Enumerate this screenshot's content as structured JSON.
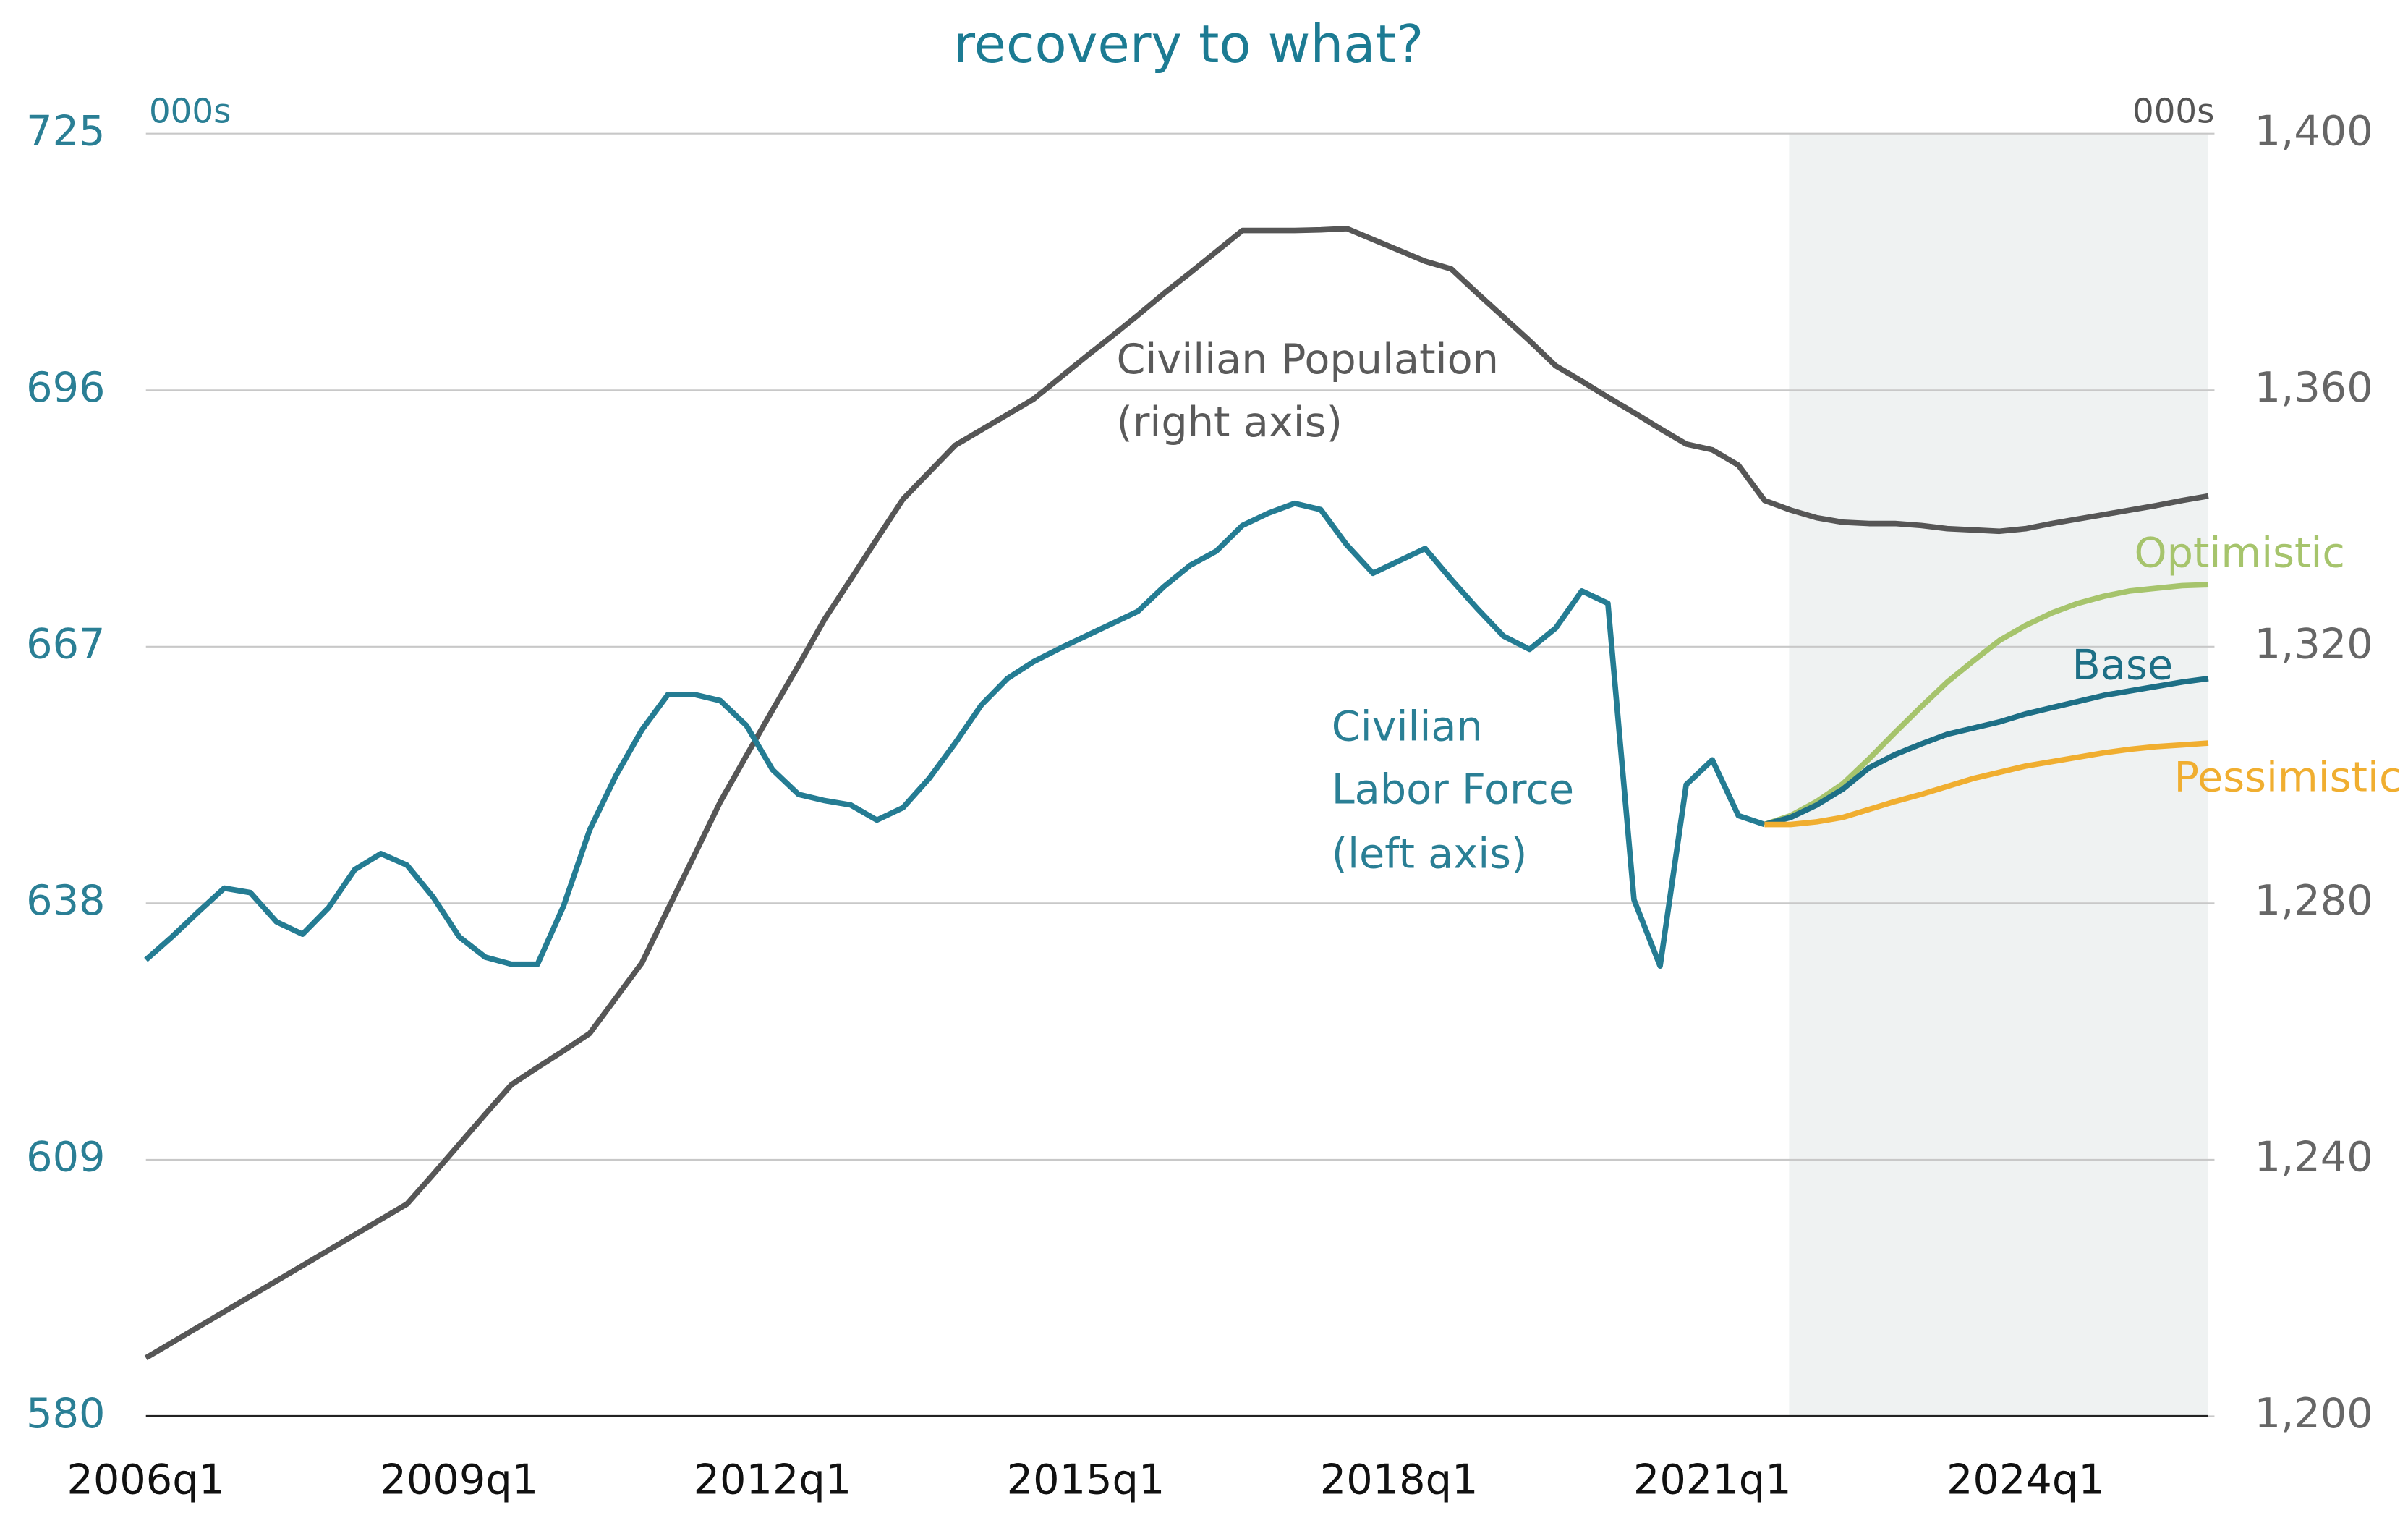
{
  "chart_data": {
    "type": "line",
    "title": "recovery to what?",
    "y_unit_label": "000s",
    "y2_unit_label": "000s",
    "categories": [
      "2006q1",
      null,
      null,
      null,
      null,
      null,
      null,
      null,
      null,
      null,
      null,
      null,
      "2009q1",
      null,
      null,
      null,
      null,
      null,
      null,
      null,
      null,
      null,
      null,
      null,
      "2012q1",
      null,
      null,
      null,
      null,
      null,
      null,
      null,
      null,
      null,
      null,
      null,
      "2015q1",
      null,
      null,
      null,
      null,
      null,
      null,
      null,
      null,
      null,
      null,
      null,
      "2018q1",
      null,
      null,
      null,
      null,
      null,
      null,
      null,
      null,
      null,
      null,
      null,
      "2021q1",
      null,
      null,
      null,
      null,
      null,
      null,
      null,
      null,
      null,
      null,
      null,
      "2024q1",
      null,
      null,
      null,
      null,
      null,
      null,
      null
    ],
    "ylim": [
      580,
      725
    ],
    "yticks": [
      580,
      609,
      638,
      667,
      696,
      725
    ],
    "y2lim": [
      1200,
      1400
    ],
    "y2ticks": [
      {
        "value": 1200,
        "label": "1,200"
      },
      {
        "value": 1240,
        "label": "1,240"
      },
      {
        "value": 1280,
        "label": "1,280"
      },
      {
        "value": 1320,
        "label": "1,320"
      },
      {
        "value": 1360,
        "label": "1,360"
      },
      {
        "value": 1400,
        "label": "1,400"
      }
    ],
    "grid": true,
    "series": [
      {
        "name": "Civilian Population",
        "note": "(right axis)",
        "axis": "y2",
        "color": "#565656",
        "values": [
          1209.1,
          1211.5,
          1213.9,
          1216.3,
          1218.7,
          1221.1,
          1223.5,
          1225.9,
          1228.3,
          1230.7,
          1233.1,
          1237.7,
          1242.4,
          1247.1,
          1251.7,
          1254.4,
          1257.0,
          1259.7,
          1265.2,
          1270.7,
          1279.1,
          1287.4,
          1295.8,
          1303.0,
          1310.1,
          1317.1,
          1324.3,
          1330.5,
          1336.8,
          1343.0,
          1347.2,
          1351.4,
          1353.8,
          1356.2,
          1358.6,
          1361.9,
          1365.2,
          1368.4,
          1371.7,
          1375.1,
          1378.3,
          1381.6,
          1384.9,
          1384.9,
          1384.9,
          1385.0,
          1385.2,
          1383.5,
          1381.8,
          1380.1,
          1378.9,
          1375.1,
          1371.4,
          1367.7,
          1363.8,
          1361.4,
          1358.9,
          1356.5,
          1354.0,
          1351.6,
          1350.7,
          1348.3,
          1342.8,
          1341.3,
          1340.1,
          1339.4,
          1339.2,
          1339.2,
          1338.9,
          1338.4,
          1338.2,
          1338.0,
          1338.4,
          1339.2,
          1339.9,
          1340.6,
          1341.3,
          1342.0,
          1342.8,
          1343.5
        ]
      },
      {
        "name": "Civilian Labor Force",
        "note": "(left axis)",
        "color": "#247c93",
        "values": [
          631.6,
          634.2,
          637.0,
          639.7,
          639.2,
          635.9,
          634.5,
          637.5,
          641.8,
          643.6,
          642.3,
          638.7,
          634.2,
          631.9,
          631.1,
          631.1,
          637.7,
          646.3,
          652.4,
          657.6,
          661.6,
          661.6,
          660.9,
          658.1,
          653.1,
          650.3,
          649.6,
          649.1,
          647.4,
          648.8,
          652.1,
          656.1,
          660.4,
          663.4,
          665.3,
          666.8,
          668.2,
          669.6,
          671.0,
          673.8,
          676.2,
          677.8,
          680.7,
          682.1,
          683.2,
          682.5,
          678.5,
          675.3,
          676.7,
          678.1,
          674.6,
          671.3,
          668.2,
          666.7,
          669.1,
          673.3,
          671.9,
          638.4,
          630.9,
          651.4,
          654.2,
          647.9,
          646.9,
          null,
          null,
          null,
          null,
          null,
          null,
          null,
          null,
          null,
          null,
          null,
          null,
          null,
          null,
          null,
          null,
          null
        ]
      },
      {
        "name": "Optimistic",
        "color": "#a6c46c",
        "values": [
          null,
          null,
          null,
          null,
          null,
          null,
          null,
          null,
          null,
          null,
          null,
          null,
          null,
          null,
          null,
          null,
          null,
          null,
          null,
          null,
          null,
          null,
          null,
          null,
          null,
          null,
          null,
          null,
          null,
          null,
          null,
          null,
          null,
          null,
          null,
          null,
          null,
          null,
          null,
          null,
          null,
          null,
          null,
          null,
          null,
          null,
          null,
          null,
          null,
          null,
          null,
          null,
          null,
          null,
          null,
          null,
          null,
          null,
          null,
          null,
          null,
          null,
          646.9,
          647.9,
          649.5,
          651.5,
          654.3,
          657.3,
          660.2,
          663.0,
          665.4,
          667.7,
          669.4,
          670.8,
          671.9,
          672.7,
          673.3,
          673.6,
          673.9,
          674.0
        ]
      },
      {
        "name": "Base",
        "color": "#1d6f86",
        "values": [
          null,
          null,
          null,
          null,
          null,
          null,
          null,
          null,
          null,
          null,
          null,
          null,
          null,
          null,
          null,
          null,
          null,
          null,
          null,
          null,
          null,
          null,
          null,
          null,
          null,
          null,
          null,
          null,
          null,
          null,
          null,
          null,
          null,
          null,
          null,
          null,
          null,
          null,
          null,
          null,
          null,
          null,
          null,
          null,
          null,
          null,
          null,
          null,
          null,
          null,
          null,
          null,
          null,
          null,
          null,
          null,
          null,
          null,
          null,
          null,
          null,
          null,
          646.9,
          647.7,
          649.1,
          650.9,
          653.3,
          654.8,
          656.0,
          657.1,
          657.8,
          658.5,
          659.4,
          660.1,
          660.8,
          661.5,
          662.0,
          662.5,
          663.0,
          663.4
        ]
      },
      {
        "name": "Pessimistic",
        "color": "#f0ae30",
        "values": [
          null,
          null,
          null,
          null,
          null,
          null,
          null,
          null,
          null,
          null,
          null,
          null,
          null,
          null,
          null,
          null,
          null,
          null,
          null,
          null,
          null,
          null,
          null,
          null,
          null,
          null,
          null,
          null,
          null,
          null,
          null,
          null,
          null,
          null,
          null,
          null,
          null,
          null,
          null,
          null,
          null,
          null,
          null,
          null,
          null,
          null,
          null,
          null,
          null,
          null,
          null,
          null,
          null,
          null,
          null,
          null,
          null,
          null,
          null,
          null,
          null,
          null,
          646.9,
          646.9,
          647.2,
          647.7,
          648.6,
          649.5,
          650.3,
          651.2,
          652.1,
          652.8,
          653.5,
          654.0,
          654.5,
          655.0,
          655.4,
          655.7,
          655.9,
          656.1
        ]
      }
    ]
  }
}
